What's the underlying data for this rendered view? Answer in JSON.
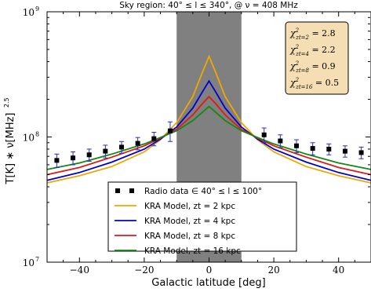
{
  "chart_data": {
    "type": "line",
    "title": "Sky region: 40° ≤ l ≤  340°, @ ν = 408 MHz",
    "xlabel": "Galactic latitude [deg]",
    "ylabel": "T[K]  ∗  ν[MHz]",
    "ylabel_sup": "2.5",
    "xlim": [
      -50,
      50
    ],
    "ylim": [
      10000000,
      1000000000
    ],
    "yscale": "log",
    "xticks": [
      -40,
      -20,
      0,
      20,
      40
    ],
    "xtick_labels": [
      "−40",
      "−20",
      "0",
      "20",
      "40"
    ],
    "yticks": [
      10000000,
      100000000,
      1000000000
    ],
    "ytick_labels": [
      "10",
      "10",
      "10"
    ],
    "ytick_exponents": [
      "7",
      "8",
      "9"
    ],
    "shaded_band": {
      "x": [
        -10,
        10
      ],
      "color": "#808080"
    },
    "colors": {
      "data": "#000000",
      "errorbar": "#2a2ad0"
    },
    "series": [
      {
        "name": "Radio data ∈ 40° ≤ l ≤  100°",
        "kind": "data",
        "color": "#000000",
        "x": [
          -47,
          -42,
          -37,
          -32,
          -27,
          -22,
          -17,
          -12,
          17,
          22,
          27,
          32,
          37,
          42,
          47
        ],
        "y": [
          65000000,
          68000000,
          72000000,
          77000000,
          83000000,
          89000000,
          97000000,
          112000000,
          104000000,
          93000000,
          85000000,
          81000000,
          80000000,
          77000000,
          75000000
        ],
        "err": [
          8000000,
          8000000,
          8000000,
          9000000,
          9000000,
          10000000,
          12000000,
          20000000,
          14000000,
          11000000,
          10000000,
          9000000,
          8000000,
          8000000,
          8000000
        ]
      },
      {
        "name": "KRA Model, zt = 2 kpc",
        "kind": "line",
        "color": "#f0a800",
        "x": [
          -50,
          -40,
          -30,
          -20,
          -15,
          -10,
          -5,
          -2,
          0,
          2,
          5,
          10,
          15,
          20,
          30,
          40,
          50
        ],
        "y": [
          43000000,
          49000000,
          58000000,
          76000000,
          95000000,
          130000000,
          210000000,
          330000000,
          440000000,
          330000000,
          210000000,
          130000000,
          95000000,
          76000000,
          58000000,
          49000000,
          43000000
        ]
      },
      {
        "name": "KRA Model, zt = 4 kpc",
        "kind": "line",
        "color": "#0000cc",
        "x": [
          -50,
          -40,
          -30,
          -20,
          -15,
          -10,
          -5,
          -2,
          0,
          2,
          5,
          10,
          15,
          20,
          30,
          40,
          50
        ],
        "y": [
          45000000,
          52000000,
          63000000,
          80000000,
          96000000,
          120000000,
          170000000,
          230000000,
          280000000,
          230000000,
          170000000,
          120000000,
          96000000,
          80000000,
          63000000,
          52000000,
          45000000
        ]
      },
      {
        "name": "KRA Model, zt = 8 kpc",
        "kind": "line",
        "color": "#e01818",
        "x": [
          -50,
          -40,
          -30,
          -20,
          -15,
          -10,
          -5,
          -2,
          0,
          2,
          5,
          10,
          15,
          20,
          30,
          40,
          50
        ],
        "y": [
          50000000,
          57000000,
          69000000,
          85000000,
          98000000,
          115000000,
          150000000,
          185000000,
          210000000,
          185000000,
          150000000,
          115000000,
          98000000,
          85000000,
          69000000,
          57000000,
          50000000
        ]
      },
      {
        "name": "KRA Model, zt = 16 kpc",
        "kind": "line",
        "color": "#108a10",
        "x": [
          -50,
          -40,
          -30,
          -20,
          -15,
          -10,
          -5,
          -2,
          0,
          2,
          5,
          10,
          15,
          20,
          30,
          40,
          50
        ],
        "y": [
          55000000,
          62000000,
          73000000,
          88000000,
          99000000,
          112000000,
          135000000,
          158000000,
          175000000,
          158000000,
          135000000,
          112000000,
          99000000,
          88000000,
          73000000,
          62000000,
          55000000
        ]
      }
    ],
    "annotation_box": {
      "color": "#f5deb3",
      "lines": [
        {
          "sub": "zt=2",
          "value": "= 2.8"
        },
        {
          "sub": "zt=4",
          "value": "= 2.2"
        },
        {
          "sub": "zt=8",
          "value": "= 0.9"
        },
        {
          "sub": "zt=16",
          "value": "= 0.5"
        }
      ]
    },
    "legend_position": "bottom-center"
  }
}
